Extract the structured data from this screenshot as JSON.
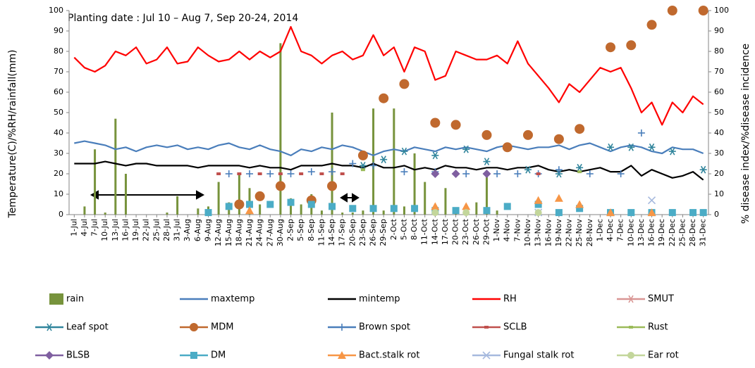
{
  "chart_data": {
    "type": "combo",
    "annotation": "Planting date : Jul 10 – Aug 7,  Sep 20-24, 2014",
    "y_label": "Temperature(C)/%RH/rainfall(mm)",
    "y2_label": "% disease index/%disease incidence",
    "categories": [
      "1-Jul",
      "4-Jul",
      "7-Jul",
      "10-Jul",
      "13-Jul",
      "16-Jul",
      "19-Jul",
      "22-Jul",
      "25-Jul",
      "28-Jul",
      "31-Jul",
      "3-Aug",
      "6-Aug",
      "9-Aug",
      "12-Aug",
      "15-Aug",
      "18-Aug",
      "21-Aug",
      "24-Aug",
      "27-Aug",
      "30-Aug",
      "2-Sep",
      "5-Sep",
      "8-Sep",
      "11-Sep",
      "14-Sep",
      "17-Sep",
      "20-Sep",
      "23-Sep",
      "26-Sep",
      "29-Sep",
      "2-Oct",
      "5-Oct",
      "8-Oct",
      "11-Oct",
      "14-Oct",
      "17-Oct",
      "20-Oct",
      "23-Oct",
      "26-Oct",
      "29-Oct",
      "1-Nov",
      "4-Nov",
      "7-Nov",
      "10-Nov",
      "13-Nov",
      "16-Nov",
      "19-Nov",
      "22-Nov",
      "25-Nov",
      "28-Nov",
      "1-Dec",
      "4-Dec",
      "7-Dec",
      "10-Dec",
      "13-Dec",
      "16-Dec",
      "19-Dec",
      "22-Dec",
      "25-Dec",
      "28-Dec",
      "31-Dec"
    ],
    "ylim": [
      0,
      100
    ],
    "yticks": [
      0,
      10,
      20,
      30,
      40,
      50,
      60,
      70,
      80,
      90,
      100
    ],
    "y2lim": [
      0,
      100
    ],
    "y2ticks": [
      0,
      10,
      20,
      30,
      40,
      50,
      60,
      70,
      80,
      90,
      100
    ],
    "series": [
      {
        "name": "rain",
        "kind": "bar",
        "color": "#77933c",
        "values": [
          0,
          4,
          32,
          1,
          47,
          20,
          0,
          0,
          0,
          1,
          9,
          0,
          3,
          4,
          16,
          6,
          20,
          13,
          5,
          0,
          84,
          8,
          5,
          10,
          2,
          50,
          1,
          1,
          2,
          52,
          2,
          52,
          4,
          30,
          16,
          3,
          13,
          2,
          5,
          6,
          20,
          2,
          0,
          0,
          0,
          0,
          0,
          0,
          0,
          0,
          0,
          0,
          0,
          0,
          0,
          0,
          0,
          0,
          0,
          0,
          0,
          0
        ]
      },
      {
        "name": "maxtemp",
        "kind": "line",
        "color": "#4a7ebb",
        "values": [
          35,
          36,
          35,
          34,
          32,
          33,
          31,
          33,
          34,
          33,
          34,
          32,
          33,
          32,
          34,
          35,
          33,
          32,
          34,
          32,
          31,
          29,
          32,
          31,
          33,
          32,
          34,
          33,
          31,
          29,
          31,
          32,
          31,
          33,
          32,
          31,
          33,
          32,
          33,
          32,
          31,
          33,
          34,
          33,
          32,
          33,
          33,
          34,
          32,
          34,
          35,
          33,
          31,
          33,
          34,
          33,
          31,
          30,
          33,
          32,
          32,
          30
        ]
      },
      {
        "name": "mintemp",
        "kind": "line",
        "color": "#000000",
        "values": [
          25,
          25,
          25,
          26,
          25,
          24,
          25,
          25,
          24,
          24,
          24,
          24,
          23,
          24,
          24,
          24,
          24,
          23,
          24,
          23,
          23,
          22,
          24,
          24,
          24,
          25,
          24,
          24,
          23,
          25,
          23,
          23,
          24,
          22,
          23,
          22,
          24,
          23,
          23,
          22,
          23,
          23,
          22,
          23,
          23,
          24,
          22,
          21,
          22,
          21,
          22,
          23,
          21,
          21,
          24,
          19,
          22,
          20,
          18,
          19,
          21,
          17
        ]
      },
      {
        "name": "RH",
        "kind": "line",
        "color": "#ff0000",
        "values": [
          77,
          72,
          70,
          73,
          80,
          78,
          82,
          74,
          76,
          82,
          74,
          75,
          82,
          78,
          75,
          76,
          80,
          76,
          80,
          77,
          80,
          92,
          80,
          78,
          74,
          78,
          80,
          76,
          78,
          88,
          78,
          82,
          70,
          82,
          80,
          66,
          68,
          80,
          78,
          76,
          76,
          78,
          74,
          85,
          74,
          68,
          62,
          55,
          64,
          60,
          66,
          72,
          70,
          72,
          62,
          50,
          55,
          44,
          55,
          50,
          58,
          54
        ]
      },
      {
        "name": "SMUT",
        "kind": "marker",
        "marker": "asterisk",
        "axis": "y2",
        "color": "#d99694",
        "values": [
          null,
          null,
          null,
          null,
          null,
          null,
          null,
          null,
          null,
          null,
          null,
          null,
          null,
          null,
          null,
          null,
          null,
          null,
          null,
          null,
          null,
          null,
          null,
          null,
          null,
          null,
          null,
          null,
          null,
          null,
          null,
          null,
          null,
          null,
          null,
          null,
          null,
          null,
          null,
          null,
          null,
          null,
          null,
          null,
          null,
          null,
          null,
          null,
          null,
          null,
          null,
          null,
          null,
          null,
          null,
          null,
          null,
          null,
          null,
          null,
          null,
          null
        ]
      },
      {
        "name": "Leaf spot",
        "kind": "marker",
        "marker": "asterisk",
        "axis": "y2",
        "color": "#31859c",
        "values": [
          null,
          null,
          null,
          null,
          null,
          null,
          null,
          null,
          null,
          null,
          null,
          null,
          null,
          null,
          null,
          null,
          null,
          null,
          null,
          null,
          null,
          null,
          null,
          null,
          null,
          null,
          null,
          null,
          24,
          null,
          27,
          null,
          31,
          null,
          null,
          29,
          null,
          null,
          32,
          null,
          26,
          null,
          null,
          null,
          22,
          null,
          null,
          20,
          null,
          23,
          null,
          null,
          33,
          null,
          33,
          null,
          33,
          null,
          31,
          null,
          null,
          22
        ]
      },
      {
        "name": "MDM",
        "kind": "marker",
        "marker": "circle",
        "size": 7,
        "axis": "y2",
        "color": "#c0692e",
        "values": [
          null,
          null,
          null,
          null,
          null,
          null,
          null,
          null,
          null,
          null,
          null,
          null,
          null,
          null,
          null,
          null,
          5,
          null,
          9,
          null,
          14,
          null,
          null,
          7,
          null,
          14,
          null,
          null,
          29,
          null,
          57,
          null,
          64,
          null,
          null,
          45,
          null,
          44,
          null,
          null,
          39,
          null,
          33,
          null,
          39,
          null,
          null,
          37,
          null,
          42,
          null,
          null,
          82,
          null,
          83,
          null,
          93,
          null,
          100,
          null,
          null,
          100
        ]
      },
      {
        "name": "Brown spot",
        "kind": "marker",
        "marker": "plus",
        "axis": "y2",
        "color": "#4a7ebb",
        "values": [
          null,
          null,
          null,
          null,
          null,
          null,
          null,
          null,
          null,
          null,
          null,
          null,
          null,
          null,
          null,
          20,
          null,
          20,
          null,
          20,
          null,
          20,
          null,
          21,
          null,
          21,
          null,
          25,
          null,
          24,
          null,
          null,
          21,
          null,
          null,
          21,
          null,
          null,
          20,
          null,
          null,
          20,
          null,
          20,
          null,
          20,
          null,
          22,
          null,
          null,
          20,
          null,
          null,
          20,
          null,
          40,
          null,
          null,
          null,
          null,
          null,
          null
        ]
      },
      {
        "name": "SCLB",
        "kind": "marker",
        "marker": "dash",
        "axis": "y2",
        "color": "#c0504d",
        "values": [
          null,
          null,
          null,
          null,
          null,
          null,
          null,
          null,
          null,
          null,
          null,
          null,
          null,
          null,
          20,
          null,
          20,
          null,
          20,
          null,
          20,
          null,
          20,
          null,
          20,
          null,
          20,
          null,
          null,
          null,
          null,
          null,
          null,
          null,
          null,
          null,
          null,
          null,
          null,
          null,
          null,
          null,
          null,
          null,
          null,
          20,
          null,
          null,
          null,
          null,
          null,
          null,
          null,
          null,
          null,
          null,
          null,
          null,
          null,
          null,
          null,
          null
        ]
      },
      {
        "name": "Rust",
        "kind": "marker",
        "marker": "dash",
        "axis": "y2",
        "color": "#9bbb59",
        "values": [
          null,
          null,
          null,
          null,
          null,
          null,
          null,
          null,
          null,
          null,
          null,
          null,
          null,
          null,
          null,
          null,
          null,
          null,
          null,
          null,
          null,
          null,
          null,
          null,
          null,
          null,
          null,
          null,
          22,
          null,
          null,
          null,
          null,
          null,
          null,
          null,
          null,
          null,
          null,
          null,
          null,
          null,
          null,
          null,
          null,
          null,
          null,
          null,
          null,
          21,
          null,
          null,
          null,
          null,
          null,
          null,
          null,
          null,
          null,
          null,
          null,
          null
        ]
      },
      {
        "name": "BLSB",
        "kind": "marker",
        "marker": "diamond",
        "axis": "y2",
        "color": "#7f5fa0",
        "values": [
          null,
          null,
          null,
          null,
          null,
          null,
          null,
          null,
          null,
          null,
          null,
          null,
          null,
          null,
          null,
          null,
          null,
          null,
          null,
          null,
          null,
          null,
          null,
          null,
          null,
          null,
          null,
          null,
          null,
          null,
          null,
          null,
          null,
          null,
          null,
          20,
          null,
          20,
          null,
          null,
          20,
          null,
          null,
          null,
          null,
          null,
          null,
          null,
          null,
          null,
          null,
          null,
          null,
          null,
          null,
          null,
          null,
          null,
          null,
          null,
          null,
          null
        ]
      },
      {
        "name": "DM",
        "kind": "marker",
        "marker": "square",
        "axis": "y2",
        "color": "#4bacc6",
        "values": [
          null,
          null,
          null,
          null,
          null,
          null,
          null,
          null,
          null,
          null,
          null,
          null,
          null,
          1,
          null,
          4,
          null,
          5,
          null,
          5,
          null,
          6,
          null,
          5,
          null,
          4,
          null,
          3,
          null,
          3,
          null,
          3,
          null,
          3,
          null,
          2,
          null,
          2,
          null,
          null,
          2,
          null,
          4,
          null,
          null,
          5,
          null,
          1,
          null,
          3,
          null,
          null,
          1,
          null,
          1,
          null,
          1,
          null,
          1,
          null,
          1,
          1
        ]
      },
      {
        "name": "Bact.stalk rot",
        "kind": "marker",
        "marker": "triangle",
        "axis": "y2",
        "color": "#f79646",
        "values": [
          null,
          null,
          null,
          null,
          null,
          null,
          null,
          null,
          null,
          null,
          null,
          null,
          null,
          null,
          null,
          null,
          null,
          2,
          null,
          null,
          null,
          null,
          null,
          null,
          null,
          null,
          null,
          null,
          null,
          null,
          null,
          null,
          null,
          null,
          null,
          4,
          null,
          null,
          4,
          null,
          null,
          null,
          null,
          null,
          null,
          7,
          null,
          8,
          null,
          5,
          null,
          null,
          1,
          null,
          null,
          null,
          1,
          null,
          null,
          null,
          null,
          null
        ]
      },
      {
        "name": "Fungal stalk rot",
        "kind": "marker",
        "marker": "x",
        "axis": "y2",
        "color": "#a6b9de",
        "values": [
          null,
          null,
          null,
          null,
          null,
          null,
          null,
          null,
          null,
          null,
          null,
          null,
          null,
          null,
          null,
          null,
          null,
          null,
          null,
          null,
          null,
          null,
          null,
          null,
          null,
          null,
          null,
          null,
          null,
          null,
          null,
          null,
          null,
          null,
          null,
          null,
          null,
          null,
          null,
          null,
          null,
          null,
          null,
          null,
          null,
          1,
          null,
          null,
          null,
          null,
          null,
          null,
          null,
          null,
          null,
          null,
          7,
          null,
          null,
          null,
          null,
          null
        ]
      },
      {
        "name": "Ear rot",
        "kind": "marker",
        "marker": "circle",
        "size": 5,
        "axis": "y2",
        "color": "#c3d69b",
        "values": [
          null,
          null,
          null,
          null,
          null,
          null,
          null,
          null,
          null,
          null,
          null,
          null,
          null,
          null,
          null,
          null,
          null,
          null,
          null,
          null,
          null,
          null,
          null,
          null,
          null,
          null,
          null,
          null,
          null,
          null,
          null,
          null,
          null,
          null,
          null,
          1,
          null,
          null,
          1,
          null,
          null,
          null,
          null,
          null,
          null,
          1,
          null,
          null,
          null,
          null,
          null,
          null,
          null,
          null,
          null,
          null,
          null,
          null,
          null,
          null,
          null,
          null
        ]
      }
    ]
  }
}
